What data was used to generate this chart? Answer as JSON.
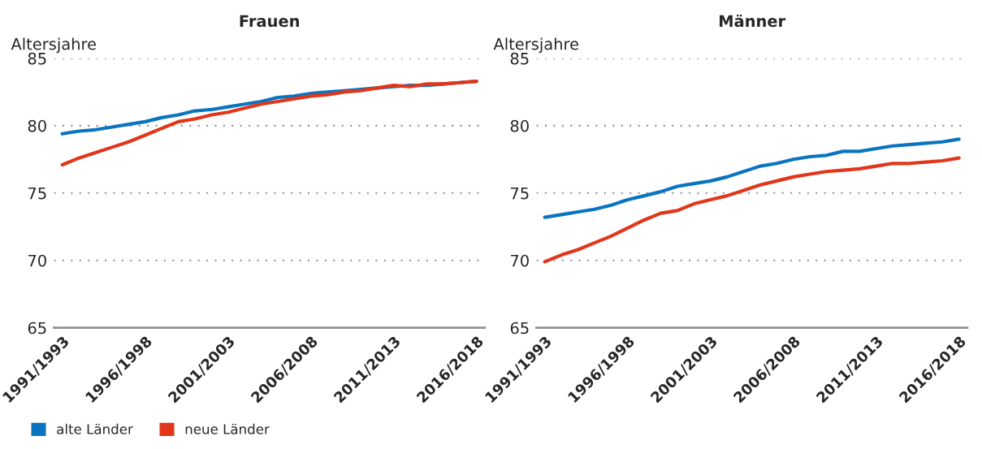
{
  "chart_data": [
    {
      "type": "line",
      "title": "Frauen",
      "ylabel": "Altersjahre",
      "categories": [
        "1991/1993",
        null,
        null,
        null,
        null,
        "1996/1998",
        null,
        null,
        null,
        null,
        "2001/2003",
        null,
        null,
        null,
        null,
        "2006/2008",
        null,
        null,
        null,
        null,
        "2011/2013",
        null,
        null,
        null,
        null,
        "2016/2018"
      ],
      "series": [
        {
          "name": "alte Länder",
          "color": "#0a74c0",
          "values": [
            79.4,
            79.6,
            79.7,
            79.9,
            80.1,
            80.3,
            80.6,
            80.8,
            81.1,
            81.2,
            81.4,
            81.6,
            81.8,
            82.1,
            82.2,
            82.4,
            82.5,
            82.6,
            82.7,
            82.8,
            82.9,
            83.0,
            83.0,
            83.1,
            83.2,
            83.3
          ]
        },
        {
          "name": "neue Länder",
          "color": "#e2361a",
          "values": [
            77.1,
            77.6,
            78.0,
            78.4,
            78.8,
            79.3,
            79.8,
            80.3,
            80.5,
            80.8,
            81.0,
            81.3,
            81.6,
            81.8,
            82.0,
            82.2,
            82.3,
            82.5,
            82.6,
            82.8,
            83.0,
            82.9,
            83.1,
            83.1,
            83.2,
            83.3
          ]
        }
      ],
      "ylim": [
        65,
        85
      ],
      "yticks": [
        65,
        70,
        75,
        80,
        85
      ],
      "grid": "y",
      "legend": "bottom"
    },
    {
      "type": "line",
      "title": "Männer",
      "ylabel": "Altersjahre",
      "categories": [
        "1991/1993",
        null,
        null,
        null,
        null,
        "1996/1998",
        null,
        null,
        null,
        null,
        "2001/2003",
        null,
        null,
        null,
        null,
        "2006/2008",
        null,
        null,
        null,
        null,
        "2011/2013",
        null,
        null,
        null,
        null,
        "2016/2018"
      ],
      "series": [
        {
          "color": "#0a74c0",
          "values": [
            73.2,
            73.4,
            73.6,
            73.8,
            74.1,
            74.5,
            74.8,
            75.1,
            75.5,
            75.7,
            75.9,
            76.2,
            76.6,
            77.0,
            77.2,
            77.5,
            77.7,
            77.8,
            78.1,
            78.1,
            78.3,
            78.5,
            78.6,
            78.7,
            78.8,
            79.0
          ]
        },
        {
          "color": "#e2361a",
          "values": [
            69.9,
            70.4,
            70.8,
            71.3,
            71.8,
            72.4,
            73.0,
            73.5,
            73.7,
            74.2,
            74.5,
            74.8,
            75.2,
            75.6,
            75.9,
            76.2,
            76.4,
            76.6,
            76.7,
            76.8,
            77.0,
            77.2,
            77.2,
            77.3,
            77.4,
            77.6
          ]
        }
      ],
      "ylim": [
        65,
        85
      ],
      "yticks": [
        65,
        70,
        75,
        80,
        85
      ],
      "grid": "y"
    }
  ]
}
